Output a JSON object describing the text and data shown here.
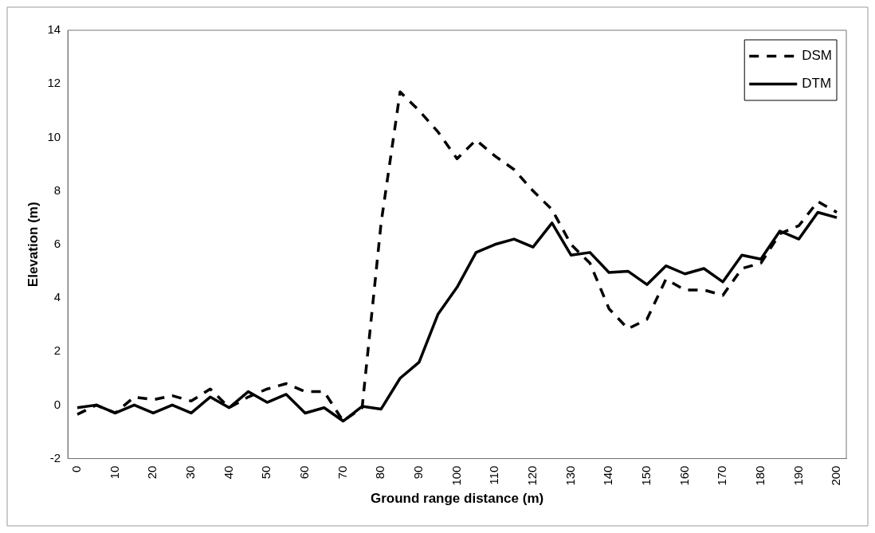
{
  "chart_data": {
    "type": "line",
    "xlabel": "Ground range distance (m)",
    "ylabel": "Elevation (m)",
    "categories": [
      "0",
      null,
      "10",
      null,
      "20",
      null,
      "30",
      null,
      "40",
      null,
      "50",
      null,
      "60",
      null,
      "70",
      null,
      "80",
      null,
      "90",
      null,
      "100",
      null,
      "110",
      null,
      "120",
      null,
      "130",
      null,
      "140",
      null,
      "150",
      null,
      "160",
      null,
      "170",
      null,
      "180",
      null,
      "190",
      null,
      "200"
    ],
    "series": [
      {
        "name": "DSM",
        "color": "#000000",
        "line_style": "dashed",
        "values": [
          -0.35,
          0.0,
          -0.3,
          0.3,
          0.2,
          0.35,
          0.15,
          0.6,
          -0.1,
          0.3,
          0.6,
          0.8,
          0.5,
          0.5,
          -0.6,
          -0.1,
          6.8,
          11.7,
          11.0,
          10.2,
          9.2,
          9.9,
          9.3,
          8.8,
          8.0,
          7.3,
          6.0,
          5.3,
          3.6,
          2.85,
          3.2,
          4.7,
          4.3,
          4.3,
          4.1,
          5.1,
          5.3,
          6.4,
          6.7,
          7.6,
          7.2
        ]
      },
      {
        "name": "DTM",
        "color": "#000000",
        "line_style": "solid",
        "values": [
          -0.1,
          0.0,
          -0.3,
          0.0,
          -0.3,
          0.0,
          -0.3,
          0.3,
          -0.1,
          0.5,
          0.1,
          0.4,
          -0.3,
          -0.1,
          -0.6,
          -0.05,
          -0.15,
          1.0,
          1.6,
          3.4,
          4.4,
          5.7,
          6.0,
          6.2,
          5.9,
          6.8,
          5.6,
          5.7,
          4.95,
          5.0,
          4.5,
          5.2,
          4.9,
          5.1,
          4.6,
          5.6,
          5.45,
          6.5,
          6.2,
          7.2,
          7.0
        ]
      }
    ],
    "ylim": [
      -2,
      14
    ],
    "yticks": [
      -2,
      0,
      2,
      4,
      6,
      8,
      10,
      12,
      14
    ],
    "grid": false,
    "legend": "top right",
    "marker": "none"
  }
}
